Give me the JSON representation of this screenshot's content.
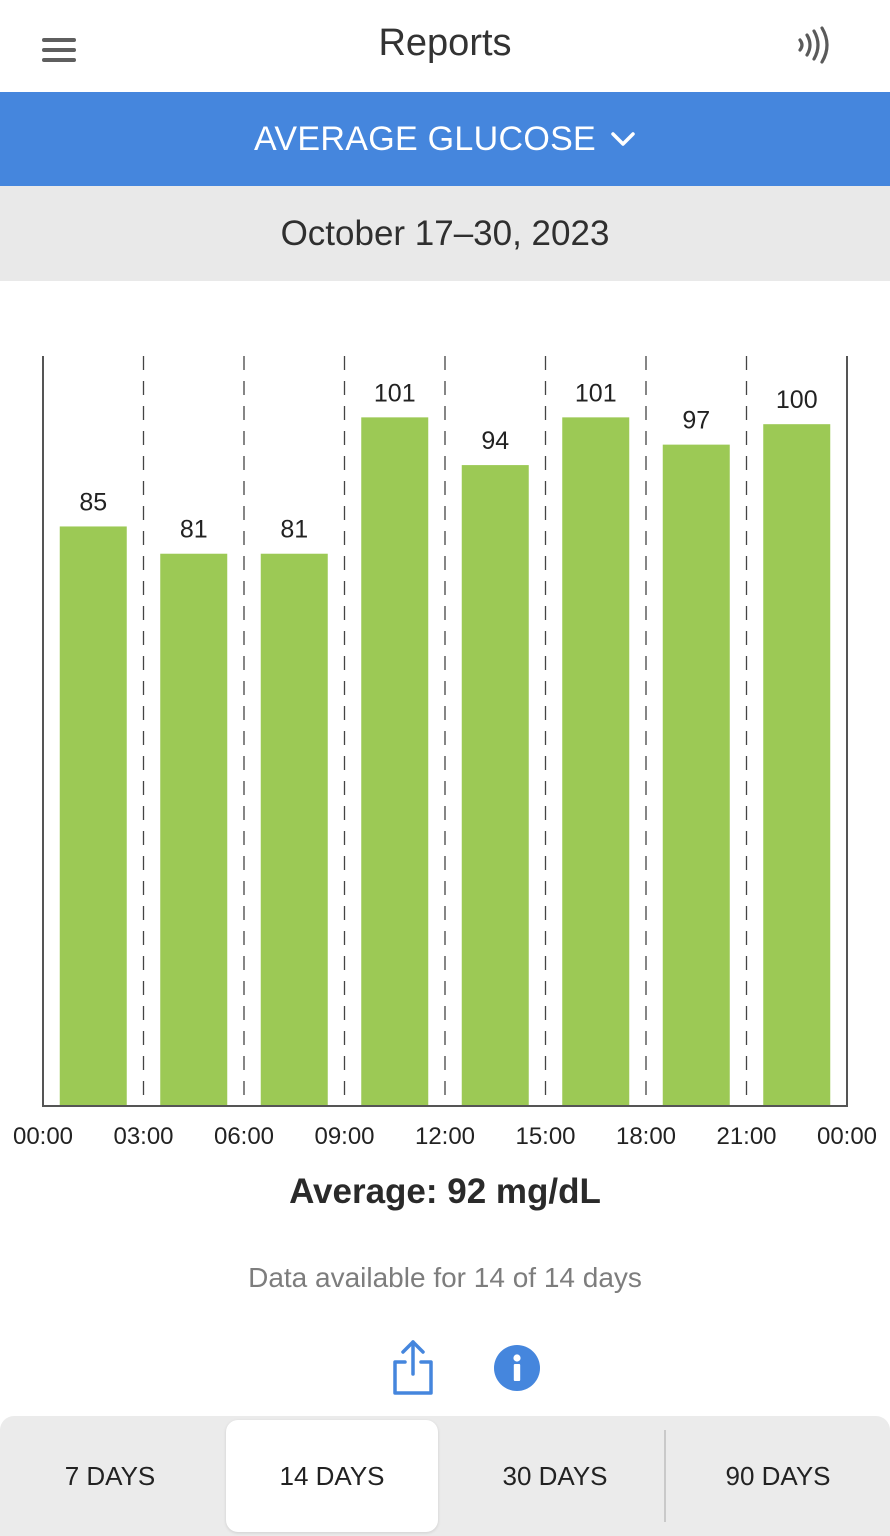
{
  "header": {
    "title": "Reports"
  },
  "report_selector": {
    "label": "AVERAGE GLUCOSE"
  },
  "date_range": "October 17–30, 2023",
  "chart_data": {
    "type": "bar",
    "categories": [
      "00:00–03:00",
      "03:00–06:00",
      "06:00–09:00",
      "09:00–12:00",
      "12:00–15:00",
      "15:00–18:00",
      "18:00–21:00",
      "21:00–00:00"
    ],
    "values": [
      85,
      81,
      81,
      101,
      94,
      101,
      97,
      100
    ],
    "x_tick_labels": [
      "00:00",
      "03:00",
      "06:00",
      "09:00",
      "12:00",
      "15:00",
      "18:00",
      "21:00",
      "00:00"
    ],
    "ylim": [
      0,
      110
    ],
    "bar_color": "#9cc955",
    "grid": "dashed vertical"
  },
  "summary": {
    "average": "Average: 92 mg/dL",
    "availability": "Data available for 14 of 14 days"
  },
  "tabs": [
    {
      "label": "7 DAYS",
      "active": false
    },
    {
      "label": "14 DAYS",
      "active": true
    },
    {
      "label": "30 DAYS",
      "active": false
    },
    {
      "label": "90 DAYS",
      "active": false
    }
  ],
  "colors": {
    "accent": "#4586dd",
    "bar": "#9cc955"
  }
}
